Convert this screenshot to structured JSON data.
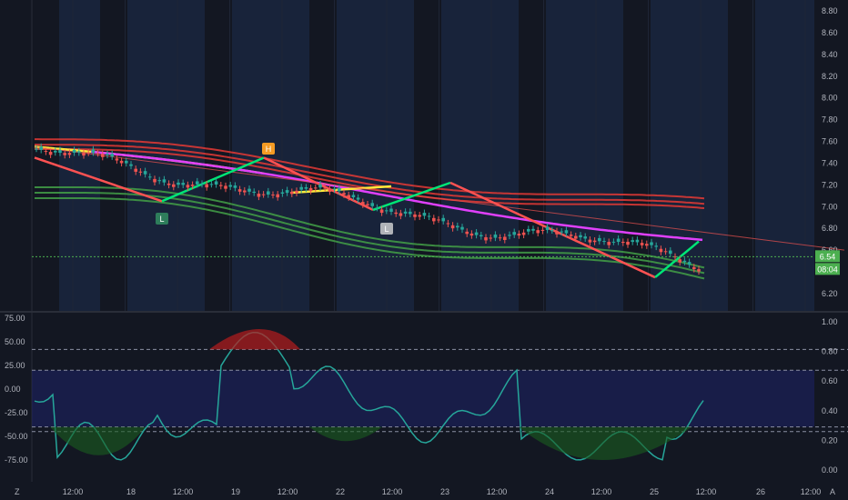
{
  "chart_data": [
    {
      "panel": "price",
      "type": "candlestick",
      "y_axis_ticks": [
        "8.80",
        "8.60",
        "8.40",
        "8.20",
        "8.00",
        "7.80",
        "7.60",
        "7.40",
        "7.20",
        "7.00",
        "6.80",
        "6.60",
        "6.40",
        "6.20"
      ],
      "ylim": [
        6.15,
        8.85
      ],
      "x_axis_ticks": [
        "12:00",
        "18",
        "12:00",
        "19",
        "12:00",
        "22",
        "12:00",
        "23",
        "12:00",
        "24",
        "12:00",
        "25",
        "12:00",
        "26",
        "12:00"
      ],
      "current_price": "6.54",
      "countdown": "08:04",
      "pivot_labels": [
        {
          "text": "L",
          "color": "#26a69a"
        },
        {
          "text": "H",
          "color": "#f59b23"
        },
        {
          "text": "L",
          "color": "#9e9e9e"
        }
      ],
      "colors": {
        "up": "#26a69a",
        "down": "#ef5350",
        "bands_upper": "#e53935",
        "bands_lower": "#43a047",
        "ma": "#e040fb",
        "ma_up": "#ffeb3b",
        "zigzag_up": "#00e676",
        "zigzag_down": "#ff5252",
        "trendline": "#ef5350",
        "price_line": "#4caf50"
      }
    },
    {
      "panel": "oscillator",
      "type": "line",
      "y_axis_left_ticks": [
        "75.00",
        "50.00",
        "25.00",
        "0.00",
        "-25.00",
        "-50.00",
        "-75.00"
      ],
      "y_axis_right_ticks": [
        "1.00",
        "0.80",
        "0.60",
        "0.40",
        "0.20",
        "0.00"
      ],
      "ylim": [
        -91,
        76
      ],
      "levels": [
        42,
        20,
        -40,
        -45
      ],
      "colors": {
        "line": "#26a69a",
        "band": "#1e2368",
        "overbought_fill": "#b71c1c",
        "oversold_fill": "#1b5e20"
      }
    }
  ],
  "corner_labels": {
    "bottom_left": "Z",
    "bottom_right": "A"
  }
}
